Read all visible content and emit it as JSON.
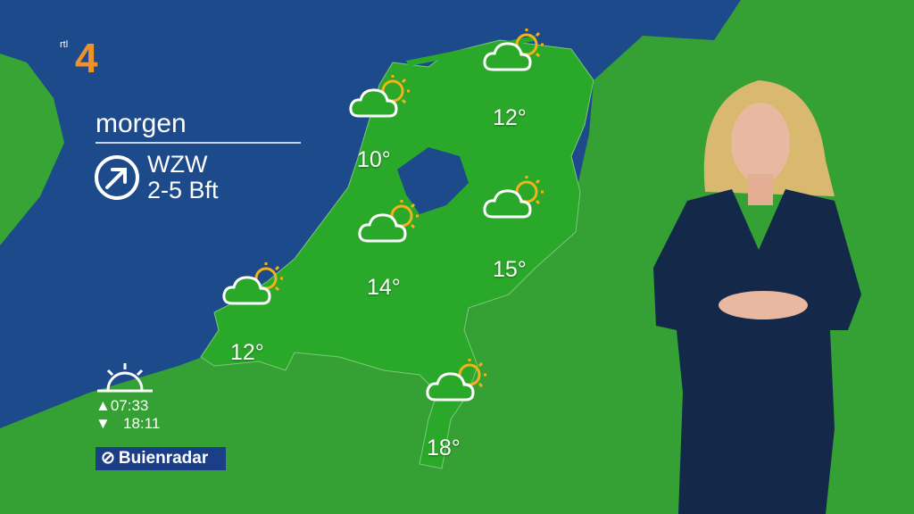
{
  "channel_logo": {
    "text": "rtl 4",
    "colors": {
      "four": "#f0922b"
    }
  },
  "panel": {
    "title": "morgen",
    "wind_direction": "WZW",
    "wind_strength": "2-5 Bft",
    "wind_icon": "arrow-circle-northeast-icon"
  },
  "sun_times": {
    "icon": "sunrise-icon",
    "sunrise": "07:33",
    "sunset": "18:11"
  },
  "sponsor": {
    "text": "Buienradar"
  },
  "forecasts": [
    {
      "region": "noord-holland",
      "temp": "10°",
      "icon": "partly-cloudy-icon"
    },
    {
      "region": "groningen",
      "temp": "12°",
      "icon": "partly-cloudy-icon"
    },
    {
      "region": "utrecht",
      "temp": "14°",
      "icon": "partly-cloudy-icon"
    },
    {
      "region": "overijssel",
      "temp": "15°",
      "icon": "partly-cloudy-icon"
    },
    {
      "region": "zeeland",
      "temp": "12°",
      "icon": "partly-cloudy-icon"
    },
    {
      "region": "limburg",
      "temp": "18°",
      "icon": "partly-cloudy-icon"
    }
  ],
  "colors": {
    "sea": "#1d4a8a",
    "land": "#2f9a2f",
    "netherlands": "#2aa82a",
    "sun": "#f2b21b",
    "presenter_dress": "#14284a"
  }
}
